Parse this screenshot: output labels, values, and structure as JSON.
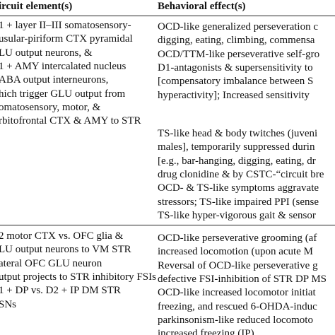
{
  "table": {
    "header": [
      "ircuit element(s)",
      "Behavioral effect(s)"
    ],
    "rows": [
      {
        "left": [
          "1 + layer II–III somatosensory-",
          "usular-piriform CTX pyramidal",
          "LU output neurons, &",
          "1 + AMY intercalated nucleus",
          "ABA output interneurons,",
          "hich trigger GLU output from",
          "omatosensory, motor, &",
          "rbitofrontal CTX & AMY to STR"
        ],
        "right": [
          [
            "OCD-like generalized perseveration c",
            "digging, eating, climbing, commensa",
            "OCD/TTM-like perseverative self-gro",
            "D1-antagonists & supersensitivity to",
            "[compensatory imbalance between S",
            "hyperactivity]; Increased sensitivity"
          ],
          [
            "TS-like head & body twitches (juveni",
            "males], temporarily suppressed durin",
            "[e.g., bar-hanging, digging, eating, dr",
            "drug clonidine & by CSTC-“circuit bre",
            "OCD- & TS-like symptoms aggravate",
            "stressors; TS-like impaired PPI (sense",
            "TS-like hyper-vigorous gait & sensor"
          ]
        ]
      },
      {
        "left": [
          "2 motor CTX vs. OFC glia &",
          "LU output neurons to VM STR",
          "ateral OFC GLU neuron",
          "utput projects to STR inhibitory FSIs",
          "1 + DP vs. D2 + IP DM STR",
          "SNs"
        ],
        "right": [
          [
            "OCD-like perseverative grooming (af",
            "increased locomotion (upon acute M",
            "Reversal of OCD-like perseverative g",
            "defective FSI-inhibition of STR DP MS",
            "OCD-like increased locomotor initiat",
            "freezing, and rescued 6-OHDA-induc",
            "parkinsonism-like reduced locomoto",
            "increased freezing (IP)"
          ]
        ]
      }
    ]
  }
}
